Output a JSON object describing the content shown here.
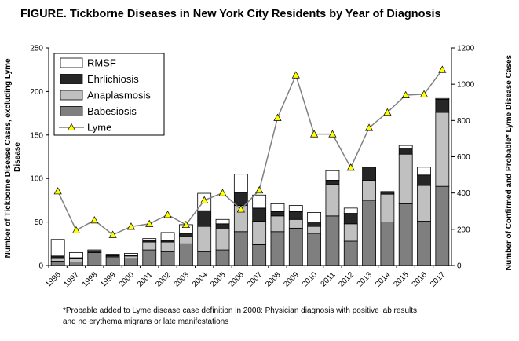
{
  "chart_data": {
    "type": "bar",
    "title": "FIGURE.  Tickborne Diseases in New York City Residents by Year of Diagnosis",
    "ylabel_left": [
      "Number of Tickborne Disease Cases, excluding Lyme",
      "Disease"
    ],
    "ylabel_right": "Number of Confirmed and Probable* Lyme Disease Cases",
    "ylim_left": [
      0,
      250
    ],
    "yticks_left": [
      0,
      50,
      100,
      150,
      200,
      250
    ],
    "ylim_right": [
      0,
      1200
    ],
    "yticks_right": [
      0,
      200,
      400,
      600,
      800,
      1000,
      1200
    ],
    "grid": false,
    "legend_position": "top-left",
    "categories": [
      "1996",
      "1997",
      "1998",
      "1999",
      "2000",
      "2001",
      "2002",
      "2003",
      "2004",
      "2005",
      "2006",
      "2007",
      "2008",
      "2009",
      "2010",
      "2011",
      "2012",
      "2013",
      "2014",
      "2015",
      "2016",
      "2017"
    ],
    "series": [
      {
        "name": "RMSF",
        "kind": "stacked-bar",
        "color": "#ffffff",
        "values": [
          19,
          6,
          1,
          1,
          2,
          2,
          9,
          10,
          20,
          5,
          21,
          15,
          9,
          7,
          11,
          11,
          6,
          0,
          0,
          3,
          9,
          1
        ]
      },
      {
        "name": "Ehrlichiosis",
        "kind": "stacked-bar",
        "color": "#262626",
        "values": [
          2,
          1,
          1,
          1,
          1,
          2,
          2,
          3,
          18,
          6,
          15,
          15,
          5,
          9,
          5,
          5,
          12,
          15,
          3,
          7,
          12,
          15
        ]
      },
      {
        "name": "Anaplasmosis",
        "kind": "stacked-bar",
        "color": "#c0c0c0",
        "values": [
          4,
          4,
          1,
          1,
          3,
          9,
          11,
          9,
          29,
          24,
          30,
          27,
          18,
          10,
          8,
          36,
          20,
          23,
          32,
          57,
          41,
          85
        ]
      },
      {
        "name": "Babesiosis",
        "kind": "stacked-bar",
        "color": "#7f7f7f",
        "values": [
          5,
          4,
          15,
          10,
          8,
          18,
          16,
          25,
          16,
          18,
          39,
          24,
          39,
          43,
          37,
          57,
          28,
          75,
          50,
          71,
          51,
          91
        ]
      },
      {
        "name": "Lyme",
        "kind": "line",
        "axis": "right",
        "color": "#808080",
        "marker_color": "#ffff00",
        "values": [
          410,
          195,
          250,
          170,
          215,
          230,
          280,
          225,
          360,
          400,
          310,
          415,
          815,
          1050,
          725,
          725,
          540,
          760,
          845,
          940,
          945,
          1080
        ]
      }
    ]
  },
  "footnote": {
    "line1": "*Probable added to Lyme disease case definition in 2008: Physician diagnosis with positive lab results",
    "line2": "and no erythema migrans or late manifestations"
  }
}
